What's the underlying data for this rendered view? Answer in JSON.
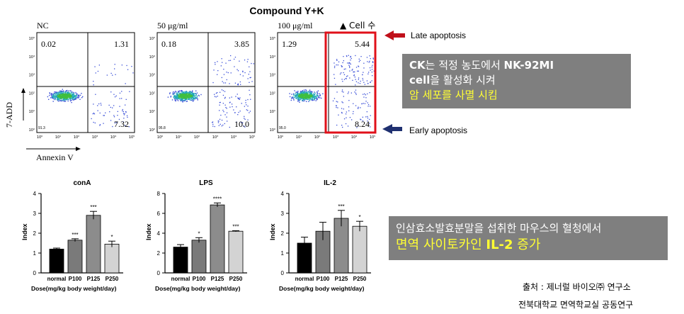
{
  "flow": {
    "title": "Compound Y+K",
    "panels": [
      {
        "label": "NC",
        "ul": "0.02",
        "ur": "1.31",
        "lr": "7.32",
        "ll": "91.3"
      },
      {
        "label": "50 μg/ml",
        "ul": "0.18",
        "ur": "3.85",
        "lr": "10.0",
        "ll": "95.8"
      },
      {
        "label": "100 μg/ml",
        "ul": "1.29",
        "ur": "5.44",
        "lr": "8.24",
        "ll": "95.0"
      }
    ],
    "ytick_labels": [
      "10⁵",
      "10⁴",
      "10³",
      "10²",
      "10¹",
      "10⁰"
    ],
    "xtick_labels": [
      "10⁰",
      "10¹",
      "10²",
      "10³",
      "10⁴",
      "10⁵"
    ],
    "ylabel": "7-ADD",
    "xlabel": "Annexin V",
    "legend_text": "▲ Cell 수",
    "late_label": "Late apoptosis",
    "early_label": "Early apoptosis",
    "colors": {
      "highlight": "#e0101a",
      "late_arrow": "#c0101a",
      "early_arrow": "#1f3070",
      "dots": "#3a4fd8"
    }
  },
  "notes": {
    "top": {
      "line1_bold": "CK",
      "line1_rest": "는 적정 농도에서 ",
      "line1_bold2": "NK-92MI",
      "line2_bold": "cell",
      "line2_rest": "을 활성화 시켜",
      "line3": "암 세포를 사멸 시킴"
    },
    "bottom": {
      "line1": "인삼효소발효분말을 섭취한 마우스의 혈청에서",
      "line2_pre": "면역 사이토카인 ",
      "line2_bold": "IL-2",
      "line2_post": " 증가"
    }
  },
  "chart_data": [
    {
      "type": "bar",
      "title": "conA",
      "ylabel": "Index",
      "xlabel": "Dose(mg/kg body weight/day)",
      "categories": [
        "normal",
        "P100",
        "P125",
        "P250"
      ],
      "values": [
        1.2,
        1.65,
        2.9,
        1.45
      ],
      "errors": [
        0.05,
        0.07,
        0.2,
        0.15
      ],
      "significance": [
        "",
        "***",
        "***",
        "*"
      ],
      "ylim": [
        0,
        4
      ],
      "yticks": [
        0,
        1,
        2,
        3,
        4
      ],
      "colors": [
        "#000000",
        "#7a7a7a",
        "#8c8c8c",
        "#d3d3d3"
      ]
    },
    {
      "type": "bar",
      "title": "LPS",
      "ylabel": "Index",
      "xlabel": "Dose(mg/kg body weight/day)",
      "categories": [
        "normal",
        "P100",
        "P125",
        "P250"
      ],
      "values": [
        2.6,
        3.3,
        6.85,
        4.2
      ],
      "errors": [
        0.25,
        0.25,
        0.2,
        0.05
      ],
      "significance": [
        "",
        "*",
        "****",
        "***"
      ],
      "ylim": [
        0,
        8
      ],
      "yticks": [
        0,
        2,
        4,
        6,
        8
      ],
      "colors": [
        "#000000",
        "#7a7a7a",
        "#8c8c8c",
        "#d3d3d3"
      ]
    },
    {
      "type": "bar",
      "title": "IL-2",
      "ylabel": "Index",
      "xlabel": "Dose(mg/kg body weight/day)",
      "categories": [
        "normal",
        "P100",
        "P125",
        "P250"
      ],
      "values": [
        1.5,
        2.1,
        2.75,
        2.35
      ],
      "errors": [
        0.3,
        0.45,
        0.4,
        0.25
      ],
      "significance": [
        "",
        "",
        "***",
        "*"
      ],
      "ylim": [
        0,
        4
      ],
      "yticks": [
        0,
        1,
        2,
        3,
        4
      ],
      "colors": [
        "#000000",
        "#7a7a7a",
        "#8c8c8c",
        "#d3d3d3"
      ]
    }
  ],
  "source": {
    "line1": "출처 : 제너럴 바이오㈜ 연구소",
    "line2": "전북대학교 면역학교실 공동연구"
  }
}
